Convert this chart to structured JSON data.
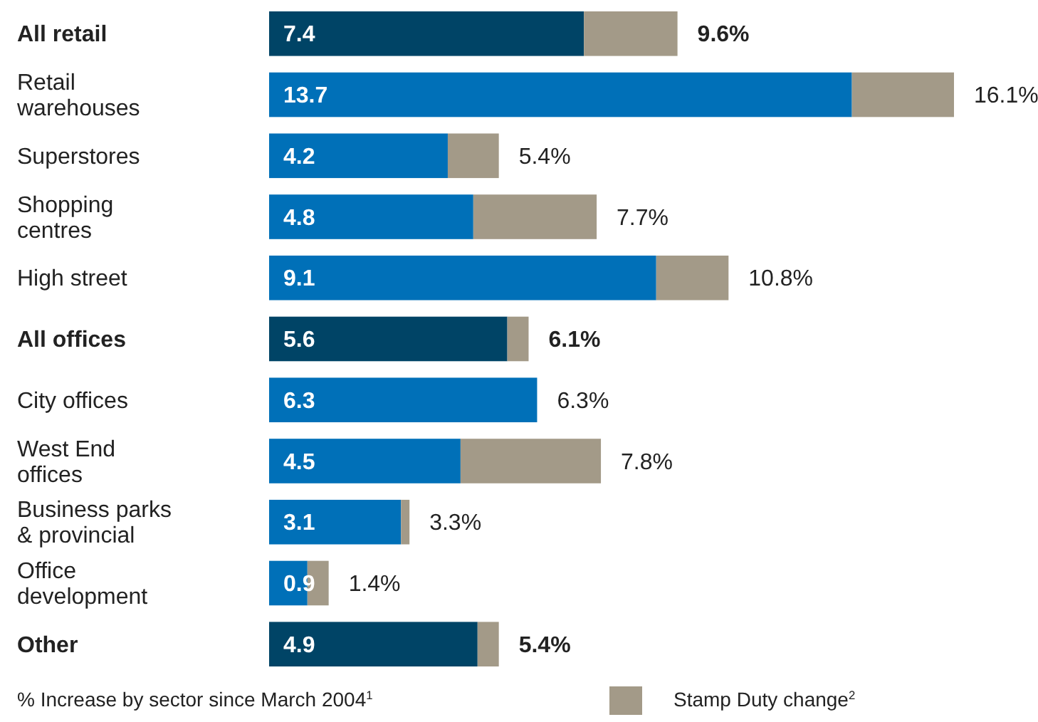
{
  "chart_data": {
    "type": "bar",
    "orientation": "horizontal",
    "stacked": true,
    "categories": [
      "All retail",
      "Retail warehouses",
      "Superstores",
      "Shopping centres",
      "High street",
      "All offices",
      "City offices",
      "West End offices",
      "Business parks & provincial",
      "Office development",
      "Other"
    ],
    "series": [
      {
        "color": "#0070b8",
        "colors": [
          "#004466",
          "#0070b8",
          "#0070b8",
          "#0070b8",
          "#0070b8",
          "#004466",
          "#0070b8",
          "#0070b8",
          "#0070b8",
          "#0070b8",
          "#004466"
        ],
        "values": [
          7.4,
          13.7,
          4.2,
          4.8,
          9.1,
          5.6,
          6.3,
          4.5,
          3.1,
          0.9,
          4.9
        ],
        "value_labels": [
          "7.4",
          "13.7",
          "4.2",
          "4.8",
          "9.1",
          "5.6",
          "6.3",
          "4.5",
          "3.1",
          "0.9",
          "4.9"
        ]
      },
      {
        "name": "Stamp Duty change$^{2}$",
        "color": "#a39a88",
        "values": [
          2.2,
          2.4,
          1.2,
          2.9,
          1.7,
          0.5,
          0,
          3.3,
          0.2,
          0.5,
          0.5
        ]
      }
    ],
    "totals": [
      "9.6%",
      "16.1%",
      "5.4%",
      "7.7%",
      "10.8%",
      "6.1%",
      "6.3%",
      "7.8%",
      "3.3%",
      "1.4%",
      "5.4%"
    ],
    "annotations": [
      "% Increase by sector since March 2004$^{1}$"
    ],
    "legend": "bottom right"
  }
}
